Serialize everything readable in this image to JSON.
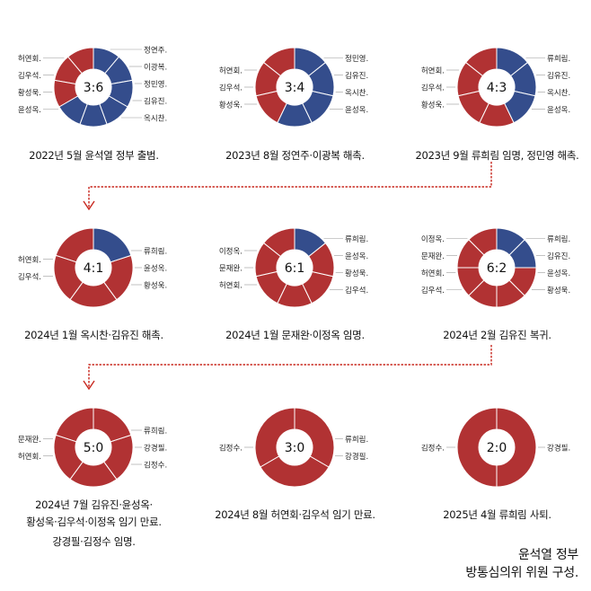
{
  "colors": {
    "red": "#b13233",
    "blue": "#344d8c",
    "connector": "#c8281f",
    "leader": "#999999"
  },
  "panels": [
    {
      "ratio": "3:6",
      "caption_lines": [
        "2022년 5월 윤석열 정부 출범."
      ],
      "left_labels": [
        "허연회.",
        "김우석.",
        "황성욱.",
        "윤성옥."
      ],
      "right_labels": [
        "정연주.",
        "이광복.",
        "정민영.",
        "김유진.",
        "옥시찬."
      ],
      "segments": [
        "red",
        "red",
        "red",
        "blue",
        "blue",
        "blue",
        "blue",
        "blue",
        "blue"
      ]
    },
    {
      "ratio": "3:4",
      "caption_lines": [
        "2023년 8월 정연주·이광복 해촉."
      ],
      "left_labels": [
        "허연회.",
        "김우석.",
        "황성욱."
      ],
      "right_labels": [
        "정민영.",
        "김유진.",
        "옥시찬.",
        "윤성옥."
      ],
      "segments": [
        "red",
        "red",
        "red",
        "blue",
        "blue",
        "blue",
        "blue"
      ]
    },
    {
      "ratio": "4:3",
      "caption_lines": [
        "2023년 9월 류희림 임명, 정민영 해촉."
      ],
      "left_labels": [
        "허연회.",
        "김우석.",
        "황성욱."
      ],
      "right_labels": [
        "류희림.",
        "김유진.",
        "옥시찬.",
        "윤성옥."
      ],
      "segments": [
        "red",
        "red",
        "red",
        "red",
        "blue",
        "blue",
        "blue"
      ]
    },
    {
      "ratio": "4:1",
      "caption_lines": [
        "2024년 1월 옥시찬·김유진 해촉."
      ],
      "left_labels": [
        "허연회.",
        "김우석."
      ],
      "right_labels": [
        "류희림.",
        "윤성옥.",
        "황성욱."
      ],
      "segments": [
        "red",
        "red",
        "red",
        "red",
        "blue"
      ]
    },
    {
      "ratio": "6:1",
      "caption_lines": [
        "2024년 1월 문재완·이정옥 임명."
      ],
      "left_labels": [
        "이정옥.",
        "문재완.",
        "허연회."
      ],
      "right_labels": [
        "류희림.",
        "윤성옥.",
        "황성욱.",
        "김우석."
      ],
      "segments": [
        "red",
        "red",
        "red",
        "red",
        "red",
        "red",
        "blue"
      ]
    },
    {
      "ratio": "6:2",
      "caption_lines": [
        "2024년 2월 김유진 복귀."
      ],
      "left_labels": [
        "이정옥.",
        "문재완.",
        "허연회.",
        "김우석."
      ],
      "right_labels": [
        "류희림.",
        "김유진.",
        "윤성옥.",
        "황성욱."
      ],
      "segments": [
        "red",
        "red",
        "red",
        "red",
        "red",
        "red",
        "blue",
        "blue"
      ]
    },
    {
      "ratio": "5:0",
      "caption_lines": [
        "2024년 7월 김유진·윤성옥·",
        "황성욱·김우석·이정옥 임기 만료.",
        "강경필·김정수 임명."
      ],
      "left_labels": [
        "문재완.",
        "허연회."
      ],
      "right_labels": [
        "류희림.",
        "강경필.",
        "김정수."
      ],
      "segments": [
        "red",
        "red",
        "red",
        "red",
        "red"
      ]
    },
    {
      "ratio": "3:0",
      "caption_lines": [
        "2024년 8월 허연회·김우석 임기 만료."
      ],
      "left_labels": [
        "김정수."
      ],
      "right_labels": [
        "류희림.",
        "강경필."
      ],
      "segments": [
        "red",
        "red",
        "red"
      ]
    },
    {
      "ratio": "2:0",
      "caption_lines": [
        "2025년 4월 류희림 사퇴."
      ],
      "left_labels": [
        "김정수."
      ],
      "right_labels": [
        "강경필."
      ],
      "segments": [
        "red",
        "red"
      ]
    }
  ],
  "footer": {
    "line1": "윤석열 정부",
    "line2": "방통심의위 위원 구성."
  }
}
